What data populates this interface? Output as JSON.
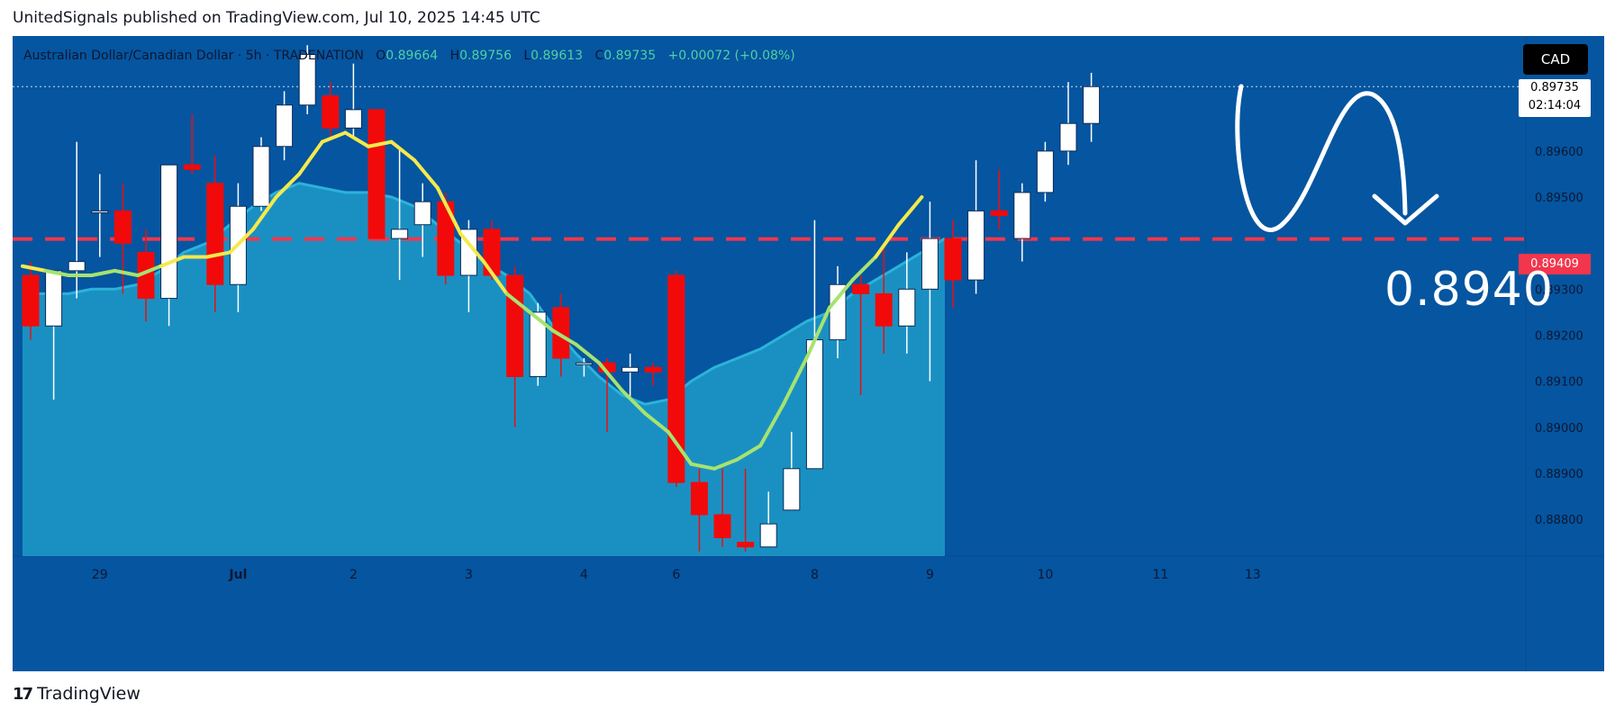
{
  "header": {
    "publisher_line": "UnitedSignals published on TradingView.com, Jul 10, 2025 14:45 UTC"
  },
  "legend": {
    "symbol": "Australian Dollar/Canadian Dollar · 5h · TRADENATION",
    "open_key": "O",
    "open": "0.89664",
    "high_key": "H",
    "high": "0.89756",
    "low_key": "L",
    "low": "0.89613",
    "close_key": "C",
    "close": "0.89735",
    "change": "+0.00072 (+0.08%)"
  },
  "price_scale": {
    "currency": "CAD",
    "last_price": "0.89735",
    "countdown": "02:14:04",
    "level_label": "0.89409"
  },
  "annotation": {
    "target_text": "0.8940"
  },
  "footer": {
    "brand_logo": "17",
    "brand": "TradingView"
  },
  "colors": {
    "background": "#0555a0",
    "bull_candle": "#ffffff",
    "bear_candle": "#f20a0a",
    "ma_fast": "#f5e94c",
    "ma_area": "#1e9bc8",
    "level_line": "#f2364d"
  },
  "chart_data": {
    "type": "candlestick",
    "title": "Australian Dollar/Canadian Dollar · 5h · TRADENATION",
    "ylim": [
      0.8872,
      0.8985
    ],
    "y_ticks": [
      "0.89600",
      "0.89500",
      "0.89300",
      "0.89200",
      "0.89100",
      "0.89000",
      "0.88900",
      "0.88800"
    ],
    "x_ticks": [
      {
        "label": "29",
        "index": 3
      },
      {
        "label": "Jul",
        "index": 9
      },
      {
        "label": "2",
        "index": 14
      },
      {
        "label": "3",
        "index": 19
      },
      {
        "label": "4",
        "index": 24
      },
      {
        "label": "6",
        "index": 28
      },
      {
        "label": "8",
        "index": 34
      },
      {
        "label": "9",
        "index": 39
      },
      {
        "label": "10",
        "index": 44
      },
      {
        "label": "11",
        "index": 49
      },
      {
        "label": "13",
        "index": 53
      }
    ],
    "candles": [
      {
        "o": 0.8933,
        "h": 0.8936,
        "l": 0.8919,
        "c": 0.8922
      },
      {
        "o": 0.8922,
        "h": 0.8934,
        "l": 0.8906,
        "c": 0.8934
      },
      {
        "o": 0.8934,
        "h": 0.8962,
        "l": 0.8928,
        "c": 0.8936
      },
      {
        "o": 0.8947,
        "h": 0.8955,
        "l": 0.8937,
        "c": 0.8947
      },
      {
        "o": 0.8947,
        "h": 0.8953,
        "l": 0.8929,
        "c": 0.894
      },
      {
        "o": 0.8938,
        "h": 0.8943,
        "l": 0.8923,
        "c": 0.8928
      },
      {
        "o": 0.8928,
        "h": 0.8957,
        "l": 0.8922,
        "c": 0.8957
      },
      {
        "o": 0.8957,
        "h": 0.8968,
        "l": 0.8955,
        "c": 0.8956
      },
      {
        "o": 0.8953,
        "h": 0.8959,
        "l": 0.8925,
        "c": 0.8931
      },
      {
        "o": 0.8931,
        "h": 0.8953,
        "l": 0.8925,
        "c": 0.8948
      },
      {
        "o": 0.8948,
        "h": 0.8963,
        "l": 0.8947,
        "c": 0.8961
      },
      {
        "o": 0.8961,
        "h": 0.8973,
        "l": 0.8958,
        "c": 0.897
      },
      {
        "o": 0.897,
        "h": 0.8983,
        "l": 0.8968,
        "c": 0.8981
      },
      {
        "o": 0.8972,
        "h": 0.8975,
        "l": 0.8963,
        "c": 0.8965
      },
      {
        "o": 0.8965,
        "h": 0.8979,
        "l": 0.8963,
        "c": 0.8969
      },
      {
        "o": 0.8969,
        "h": 0.8969,
        "l": 0.8941,
        "c": 0.8941
      },
      {
        "o": 0.8941,
        "h": 0.8961,
        "l": 0.8932,
        "c": 0.8943
      },
      {
        "o": 0.8944,
        "h": 0.8953,
        "l": 0.8937,
        "c": 0.8949
      },
      {
        "o": 0.8949,
        "h": 0.8951,
        "l": 0.8931,
        "c": 0.8933
      },
      {
        "o": 0.8933,
        "h": 0.8945,
        "l": 0.8925,
        "c": 0.8943
      },
      {
        "o": 0.8943,
        "h": 0.8945,
        "l": 0.8932,
        "c": 0.8933
      },
      {
        "o": 0.8933,
        "h": 0.8935,
        "l": 0.89,
        "c": 0.8911
      },
      {
        "o": 0.8911,
        "h": 0.8927,
        "l": 0.8909,
        "c": 0.8925
      },
      {
        "o": 0.8926,
        "h": 0.8929,
        "l": 0.8911,
        "c": 0.8915
      },
      {
        "o": 0.8914,
        "h": 0.8915,
        "l": 0.8911,
        "c": 0.8914
      },
      {
        "o": 0.8914,
        "h": 0.8915,
        "l": 0.8899,
        "c": 0.8912
      },
      {
        "o": 0.8912,
        "h": 0.8916,
        "l": 0.8906,
        "c": 0.8913
      },
      {
        "o": 0.8913,
        "h": 0.8914,
        "l": 0.8909,
        "c": 0.8912
      },
      {
        "o": 0.8933,
        "h": 0.8934,
        "l": 0.8887,
        "c": 0.8888
      },
      {
        "o": 0.8888,
        "h": 0.8891,
        "l": 0.8873,
        "c": 0.8881
      },
      {
        "o": 0.8881,
        "h": 0.8891,
        "l": 0.8874,
        "c": 0.8876
      },
      {
        "o": 0.8875,
        "h": 0.8891,
        "l": 0.8873,
        "c": 0.8874
      },
      {
        "o": 0.8874,
        "h": 0.8886,
        "l": 0.8874,
        "c": 0.8879
      },
      {
        "o": 0.8882,
        "h": 0.8899,
        "l": 0.8882,
        "c": 0.8891
      },
      {
        "o": 0.8891,
        "h": 0.8945,
        "l": 0.8891,
        "c": 0.8919
      },
      {
        "o": 0.8919,
        "h": 0.8935,
        "l": 0.8915,
        "c": 0.8931
      },
      {
        "o": 0.8931,
        "h": 0.8933,
        "l": 0.8907,
        "c": 0.8929
      },
      {
        "o": 0.8929,
        "h": 0.8939,
        "l": 0.8916,
        "c": 0.8922
      },
      {
        "o": 0.8922,
        "h": 0.8938,
        "l": 0.8916,
        "c": 0.893
      },
      {
        "o": 0.893,
        "h": 0.8949,
        "l": 0.891,
        "c": 0.8941
      },
      {
        "o": 0.8941,
        "h": 0.8945,
        "l": 0.8926,
        "c": 0.8932
      },
      {
        "o": 0.8932,
        "h": 0.8958,
        "l": 0.8929,
        "c": 0.8947
      },
      {
        "o": 0.8947,
        "h": 0.8956,
        "l": 0.8943,
        "c": 0.8946
      },
      {
        "o": 0.8941,
        "h": 0.8953,
        "l": 0.8936,
        "c": 0.8951
      },
      {
        "o": 0.8951,
        "h": 0.8962,
        "l": 0.8949,
        "c": 0.896
      },
      {
        "o": 0.896,
        "h": 0.8975,
        "l": 0.8957,
        "c": 0.8966
      },
      {
        "o": 0.8966,
        "h": 0.8977,
        "l": 0.8962,
        "c": 0.8974
      }
    ],
    "series": [
      {
        "values": [
          0.8935,
          0.8934,
          0.8933,
          0.8933,
          0.8934,
          0.8933,
          0.8935,
          0.8937,
          0.8937,
          0.8938,
          0.8943,
          0.895,
          0.8955,
          0.8962,
          0.8964,
          0.8961,
          0.8962,
          0.8958,
          0.8952,
          0.8942,
          0.8936,
          0.8929,
          0.8925,
          0.8921,
          0.8918,
          0.8914,
          0.8908,
          0.8903,
          0.8899,
          0.8892,
          0.8891,
          0.8893,
          0.8896,
          0.8905,
          0.8915,
          0.8926,
          0.8932,
          0.8937,
          0.8944,
          0.895
        ]
      },
      {
        "values": [
          0.8929,
          0.8929,
          0.8929,
          0.893,
          0.893,
          0.8931,
          0.8934,
          0.8938,
          0.894,
          0.8944,
          0.8948,
          0.8951,
          0.8953,
          0.8952,
          0.8951,
          0.8951,
          0.895,
          0.8948,
          0.8944,
          0.894,
          0.8936,
          0.8933,
          0.8929,
          0.8922,
          0.8916,
          0.8911,
          0.8907,
          0.8905,
          0.8906,
          0.891,
          0.8913,
          0.8915,
          0.8917,
          0.892,
          0.8923,
          0.8925,
          0.8929,
          0.8932,
          0.8935,
          0.8938,
          0.8941
        ]
      }
    ],
    "levels": [
      0.89409
    ]
  }
}
